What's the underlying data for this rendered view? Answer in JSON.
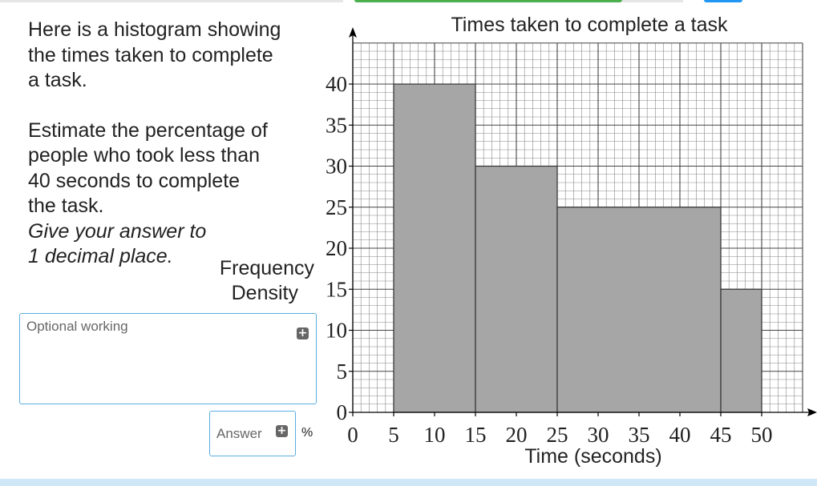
{
  "question": {
    "intro": [
      "Here is a histogram showing",
      "the times taken to complete",
      "a task."
    ],
    "prompt": [
      "Estimate the percentage of",
      "people who took less than",
      "40 seconds to complete",
      "the task."
    ],
    "instruction": [
      "Give your answer to",
      "1 decimal place."
    ]
  },
  "working": {
    "placeholder": "Optional working"
  },
  "answer": {
    "placeholder": "Answer",
    "unit": "%"
  },
  "icons": {
    "add": "plus-icon"
  },
  "colors": {
    "bar_fill": "#a6a6a6",
    "bar_stroke": "#333333",
    "grid_major": "#444444",
    "grid_minor": "#888888",
    "input_border": "#5aaee0"
  },
  "chart_data": {
    "type": "bar",
    "subtype": "histogram",
    "title": "Times taken to complete a task",
    "xlabel": "Time (seconds)",
    "ylabel": [
      "Frequency",
      "Density"
    ],
    "xlim": [
      0,
      55
    ],
    "ylim": [
      0,
      45
    ],
    "xticks": [
      0,
      5,
      10,
      15,
      20,
      25,
      30,
      35,
      40,
      45,
      50
    ],
    "yticks": [
      0,
      5,
      10,
      15,
      20,
      25,
      30,
      35,
      40
    ],
    "bins": [
      {
        "from": 5,
        "to": 15,
        "value": 40
      },
      {
        "from": 15,
        "to": 25,
        "value": 30
      },
      {
        "from": 25,
        "to": 45,
        "value": 25
      },
      {
        "from": 45,
        "to": 50,
        "value": 15
      }
    ],
    "grid": true
  }
}
